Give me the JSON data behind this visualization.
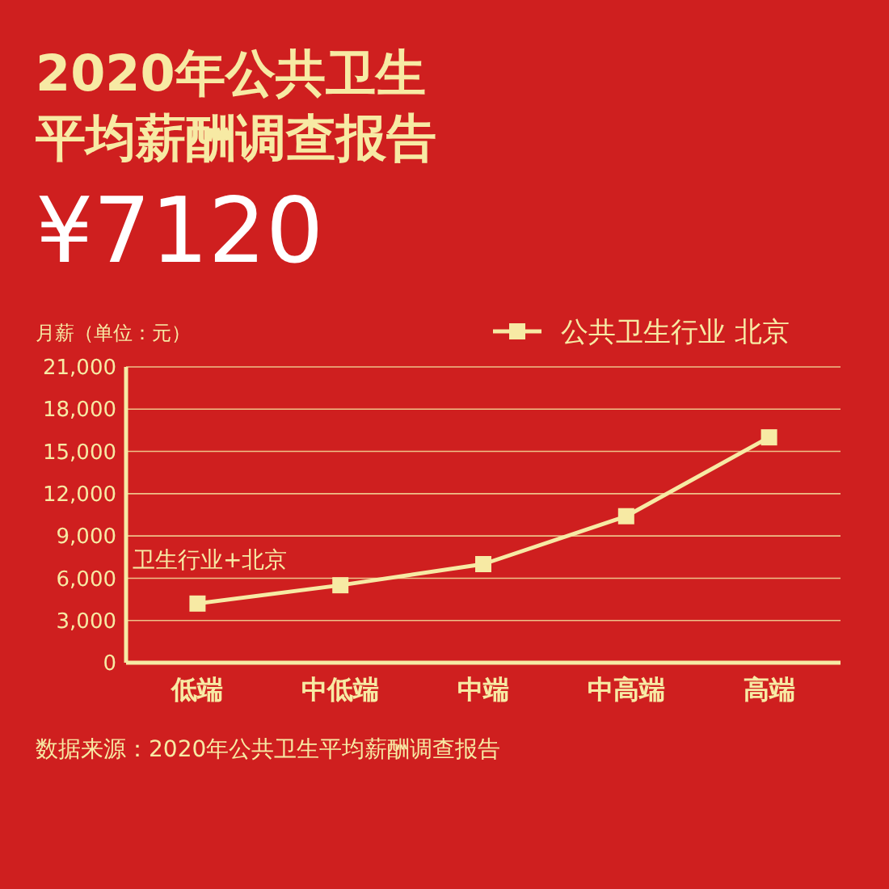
{
  "chart_data": {
    "type": "line",
    "title": "2020年公共卫生平均薪酬调查报告",
    "subtitle": "¥7120",
    "ylabel": "月薪（单位：元）",
    "categories": [
      "低端",
      "中低端",
      "中端",
      "中高端",
      "高端"
    ],
    "series": [
      {
        "name": "公共卫生行业 北京",
        "color": "#f7eaa4",
        "values": [
          4200,
          5500,
          7000,
          10400,
          16000
        ]
      }
    ],
    "ylim": [
      0,
      21000
    ],
    "yticks": [
      {
        "value": 0,
        "label": "0"
      },
      {
        "value": 3000,
        "label": "3,000"
      },
      {
        "value": 6000,
        "label": "6,000"
      },
      {
        "value": 9000,
        "label": "9,000"
      },
      {
        "value": 12000,
        "label": "12,000"
      },
      {
        "value": 15000,
        "label": "15,000"
      },
      {
        "value": 18000,
        "label": "18,000"
      },
      {
        "value": 21000,
        "label": "21,000"
      }
    ],
    "grid": "y",
    "legend": "top right",
    "marker": "square",
    "line_style": "solid",
    "annotations": [
      "卫生行业+北京",
      "数据来源：2020年公共卫生平均薪酬调查报告"
    ]
  }
}
